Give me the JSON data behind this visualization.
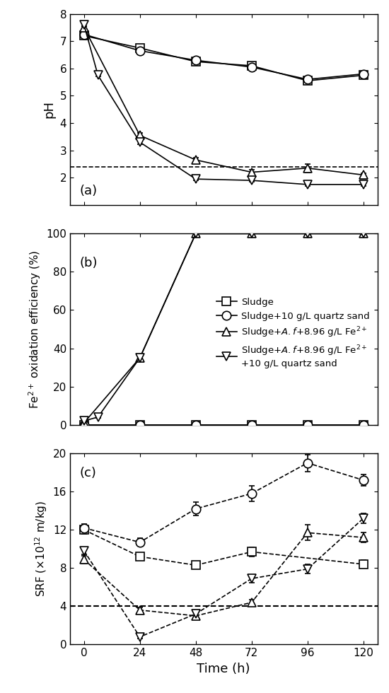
{
  "time": [
    0,
    6,
    24,
    48,
    72,
    96,
    120
  ],
  "ph": {
    "sludge": [
      7.2,
      null,
      6.75,
      6.25,
      6.1,
      5.55,
      5.75
    ],
    "sludge_qs": [
      7.25,
      null,
      6.65,
      6.3,
      6.05,
      5.6,
      5.8
    ],
    "sludge_af": [
      7.5,
      null,
      3.55,
      2.65,
      2.2,
      2.35,
      2.1
    ],
    "sludge_af_qs": [
      7.6,
      5.75,
      3.3,
      1.95,
      1.9,
      1.75,
      1.75
    ],
    "sludge_err": [
      0.05,
      null,
      0.05,
      0.05,
      0.05,
      0.05,
      0.08
    ],
    "sludge_qs_err": [
      0.05,
      null,
      0.05,
      0.05,
      0.05,
      0.05,
      0.05
    ],
    "sludge_af_err": [
      0.05,
      null,
      0.08,
      0.08,
      0.08,
      0.15,
      0.05
    ],
    "sludge_af_qs_err": [
      0.05,
      0.05,
      0.08,
      0.05,
      0.05,
      0.05,
      0.05
    ],
    "dashed_y": 2.4,
    "ylim": [
      1,
      8
    ],
    "yticks": [
      2,
      3,
      4,
      5,
      6,
      7,
      8
    ]
  },
  "fe_ox": {
    "time": [
      0,
      6,
      24,
      48,
      72,
      96,
      120
    ],
    "sludge": [
      0,
      null,
      0,
      0,
      0,
      0,
      0
    ],
    "sludge_qs": [
      0,
      null,
      0,
      0,
      0,
      0,
      0
    ],
    "sludge_af": [
      1,
      null,
      35,
      100,
      100,
      100,
      100
    ],
    "sludge_af_qs": [
      2,
      4,
      35,
      100,
      100,
      100,
      100
    ],
    "sludge_err": [
      0.2,
      null,
      0.2,
      0.2,
      0.2,
      0.2,
      0.2
    ],
    "sludge_qs_err": [
      0.2,
      null,
      0.2,
      0.2,
      0.2,
      0.2,
      0.2
    ],
    "sludge_af_err": [
      0.5,
      null,
      1.5,
      0.5,
      0.5,
      0.5,
      0.5
    ],
    "sludge_af_qs_err": [
      0.5,
      0.5,
      1.5,
      0.5,
      0.5,
      0.5,
      0.5
    ],
    "ylim": [
      0,
      100
    ],
    "yticks": [
      0,
      20,
      40,
      60,
      80,
      100
    ]
  },
  "srf": {
    "time": [
      0,
      6,
      24,
      48,
      72,
      96,
      120
    ],
    "sludge": [
      12.0,
      null,
      9.2,
      8.3,
      9.7,
      null,
      8.4
    ],
    "sludge_qs": [
      12.2,
      null,
      10.7,
      14.2,
      15.8,
      19.0,
      17.2
    ],
    "sludge_af": [
      8.9,
      null,
      3.6,
      3.0,
      4.4,
      11.7,
      11.2
    ],
    "sludge_af_qs": [
      9.8,
      null,
      0.8,
      3.2,
      6.9,
      7.9,
      13.2
    ],
    "sludge_err": [
      0.4,
      null,
      0.3,
      0.3,
      0.5,
      null,
      0.4
    ],
    "sludge_qs_err": [
      0.4,
      null,
      0.4,
      0.7,
      0.8,
      0.9,
      0.6
    ],
    "sludge_af_err": [
      0.4,
      null,
      0.3,
      0.3,
      0.3,
      0.8,
      0.5
    ],
    "sludge_af_qs_err": [
      0.4,
      null,
      0.15,
      0.3,
      0.4,
      0.5,
      0.5
    ],
    "dashed_y": 4,
    "ylim": [
      0,
      20
    ],
    "yticks": [
      0,
      4,
      8,
      12,
      16,
      20
    ]
  },
  "color": "#000000",
  "linewidth": 1.2,
  "markersize": 9,
  "panel_labels": [
    "(a)",
    "(b)",
    "(c)"
  ],
  "xlabel": "Time (h)",
  "ylabel_a": "pH",
  "xticks": [
    0,
    24,
    48,
    72,
    96,
    120
  ],
  "figsize": [
    5.5,
    9.8
  ]
}
